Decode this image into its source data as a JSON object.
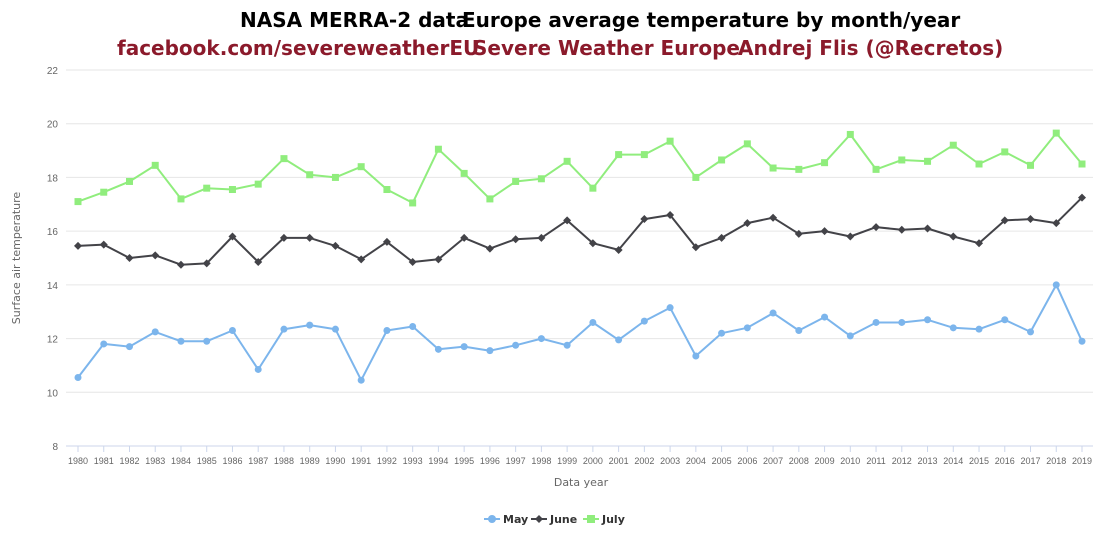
{
  "title": {
    "left": "NASA MERRA-2 data",
    "right": "Europe average temperature by month/year"
  },
  "subtitle": {
    "facebook": "facebook.com/severeweatherEU",
    "org": "Severe Weather Europe",
    "author": "Andrej Flis (@Recretos)",
    "color": "#8b1a2b"
  },
  "chart_data": {
    "type": "line",
    "title": "Europe average temperature by month/year",
    "xlabel": "Data year",
    "ylabel": "Surface air temperature",
    "ylim": [
      8,
      22
    ],
    "yticks": [
      8,
      10,
      12,
      14,
      16,
      18,
      20,
      22
    ],
    "grid": "horizontal",
    "legend_position": "bottom-center",
    "categories": [
      "1980",
      "1981",
      "1982",
      "1983",
      "1984",
      "1985",
      "1986",
      "1987",
      "1988",
      "1989",
      "1990",
      "1991",
      "1992",
      "1993",
      "1994",
      "1995",
      "1996",
      "1997",
      "1998",
      "1999",
      "2000",
      "2001",
      "2002",
      "2003",
      "2004",
      "2005",
      "2006",
      "2007",
      "2008",
      "2009",
      "2010",
      "2011",
      "2012",
      "2013",
      "2014",
      "2015",
      "2016",
      "2017",
      "2018",
      "2019"
    ],
    "series": [
      {
        "name": "May",
        "color": "#7cb5ec",
        "marker": "circle",
        "values": [
          10.55,
          11.8,
          11.7,
          12.25,
          11.9,
          11.9,
          12.3,
          10.85,
          12.35,
          12.5,
          12.35,
          10.45,
          12.3,
          12.45,
          11.6,
          11.7,
          11.55,
          11.75,
          12.0,
          11.75,
          12.6,
          11.95,
          12.65,
          13.15,
          11.35,
          12.2,
          12.4,
          12.95,
          12.3,
          12.8,
          12.1,
          12.6,
          12.6,
          12.7,
          12.4,
          12.35,
          12.7,
          12.25,
          14.0,
          11.9
        ]
      },
      {
        "name": "June",
        "color": "#434348",
        "marker": "diamond",
        "values": [
          15.45,
          15.5,
          15.0,
          15.1,
          14.75,
          14.8,
          15.8,
          14.85,
          15.75,
          15.75,
          15.45,
          14.95,
          15.6,
          14.85,
          14.95,
          15.75,
          15.35,
          15.7,
          15.75,
          16.4,
          15.55,
          15.3,
          16.45,
          16.6,
          15.4,
          15.75,
          16.3,
          16.5,
          15.9,
          16.0,
          15.8,
          16.15,
          16.05,
          16.1,
          15.8,
          15.55,
          16.4,
          16.45,
          16.3,
          17.25
        ]
      },
      {
        "name": "July",
        "color": "#90ed7d",
        "marker": "square",
        "values": [
          17.1,
          17.45,
          17.85,
          18.45,
          17.2,
          17.6,
          17.55,
          17.75,
          18.7,
          18.1,
          18.0,
          18.4,
          17.55,
          17.05,
          19.05,
          18.15,
          17.2,
          17.85,
          17.95,
          18.6,
          17.6,
          18.85,
          18.85,
          19.35,
          18.0,
          18.65,
          19.25,
          18.35,
          18.3,
          18.55,
          19.6,
          18.3,
          18.65,
          18.6,
          19.2,
          18.5,
          18.95,
          18.45,
          19.65,
          18.5
        ]
      }
    ]
  }
}
